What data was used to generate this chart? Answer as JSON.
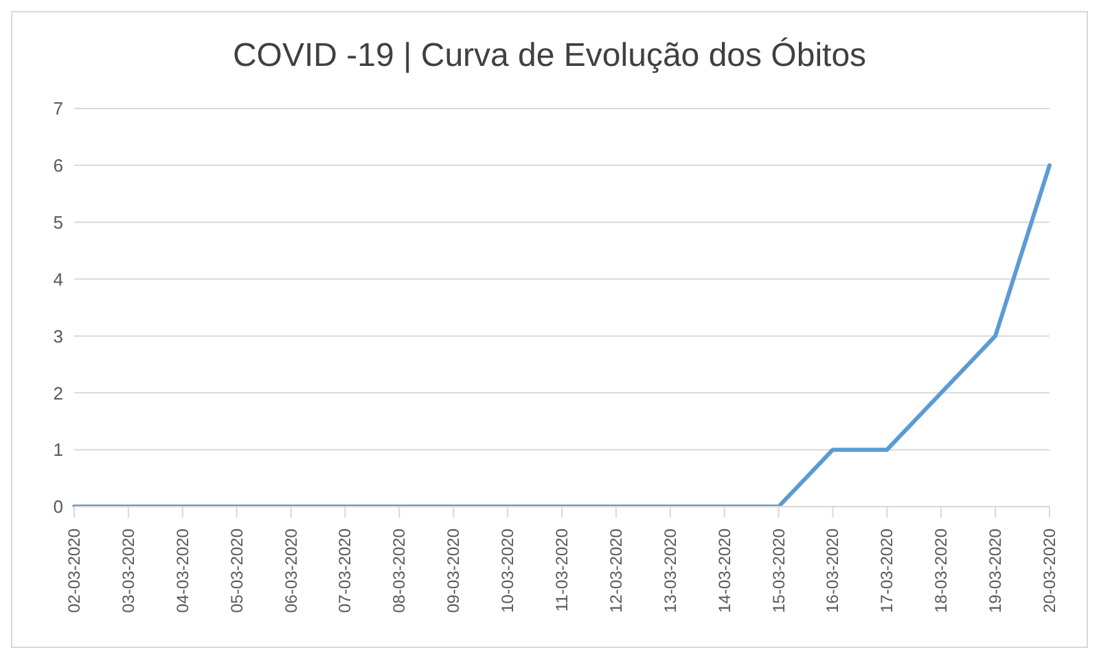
{
  "chart_data": {
    "type": "line",
    "title": "COVID -19 | Curva de Evolução dos Óbitos",
    "categories": [
      "02-03-2020",
      "03-03-2020",
      "04-03-2020",
      "05-03-2020",
      "06-03-2020",
      "07-03-2020",
      "08-03-2020",
      "09-03-2020",
      "10-03-2020",
      "11-03-2020",
      "12-03-2020",
      "13-03-2020",
      "14-03-2020",
      "15-03-2020",
      "16-03-2020",
      "17-03-2020",
      "18-03-2020",
      "19-03-2020",
      "20-03-2020"
    ],
    "series": [
      {
        "color": "#5b9bd5",
        "values": [
          0,
          0,
          0,
          0,
          0,
          0,
          0,
          0,
          0,
          0,
          0,
          0,
          0,
          0,
          1,
          1,
          2,
          3,
          6
        ]
      }
    ],
    "ylim": [
      0,
      7
    ],
    "yticks": [
      0,
      1,
      2,
      3,
      4,
      5,
      6,
      7
    ],
    "grid": "y",
    "marker": "none",
    "line_style": "solid",
    "legend": false
  }
}
